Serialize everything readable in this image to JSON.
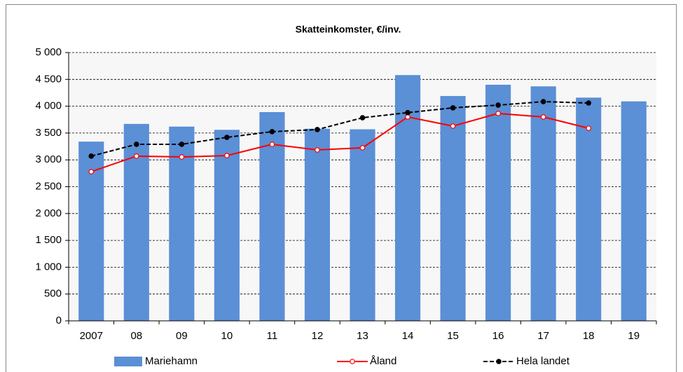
{
  "chart_data": {
    "type": "bar",
    "title": "Skatteinkomster, €/inv.",
    "categories": [
      "2007",
      "08",
      "09",
      "10",
      "11",
      "12",
      "13",
      "14",
      "15",
      "16",
      "17",
      "18",
      "19"
    ],
    "series": [
      {
        "name": "Mariehamn",
        "type": "bar",
        "color": "#5b8fd6",
        "values": [
          3340,
          3670,
          3620,
          3560,
          3890,
          3580,
          3570,
          4580,
          4190,
          4400,
          4370,
          4160,
          4090
        ]
      },
      {
        "name": "Åland",
        "type": "line",
        "color": "#ff0000",
        "marker_fill": "#ffffff",
        "line_style": "solid",
        "values": [
          2780,
          3070,
          3055,
          3080,
          3290,
          3185,
          3225,
          3800,
          3630,
          3865,
          3800,
          3590,
          null
        ]
      },
      {
        "name": "Hela landet",
        "type": "line",
        "color": "#000000",
        "marker_fill": "#000000",
        "line_style": "dashed",
        "values": [
          3070,
          3290,
          3290,
          3420,
          3525,
          3565,
          3785,
          3880,
          3970,
          4020,
          4085,
          4060,
          null
        ]
      }
    ],
    "ylim": [
      0,
      5000
    ],
    "yticks": [
      0,
      500,
      {
        "value": 1000,
        "label": "1 000"
      },
      {
        "value": 1500,
        "label": "1 500"
      },
      {
        "value": 2000,
        "label": "2 000"
      },
      {
        "value": 2500,
        "label": "2 500"
      },
      {
        "value": 3000,
        "label": "3 000"
      },
      {
        "value": 3500,
        "label": "3 500"
      },
      {
        "value": 4000,
        "label": "4 000"
      },
      {
        "value": 4500,
        "label": "4 500"
      },
      {
        "value": 5000,
        "label": "5 000"
      }
    ],
    "grid": true,
    "legend": "bottom"
  }
}
